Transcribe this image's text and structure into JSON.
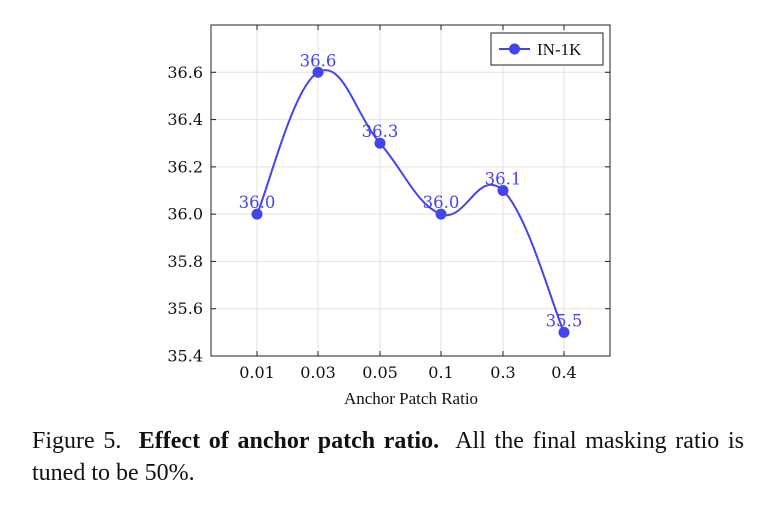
{
  "chart_data": {
    "type": "line",
    "categories": [
      "0.01",
      "0.03",
      "0.05",
      "0.1",
      "0.3",
      "0.4"
    ],
    "series": [
      {
        "name": "IN-1K",
        "values": [
          36.0,
          36.6,
          36.3,
          36.0,
          36.1,
          35.5
        ],
        "labels": [
          "36.0",
          "36.6",
          "36.3",
          "36.0",
          "36.1",
          "35.5"
        ]
      }
    ],
    "xlabel": "Anchor Patch Ratio",
    "ylabel": "",
    "ylim": [
      35.4,
      36.8
    ],
    "yticks": [
      "35.4",
      "35.6",
      "35.8",
      "36.0",
      "36.2",
      "36.4",
      "36.6"
    ],
    "grid": true,
    "legend": "top-right",
    "line_color": "#4444ee"
  },
  "caption": {
    "figure_label": "Figure 5.",
    "title": "Effect of anchor patch ratio.",
    "text": "All the final masking ratio is tuned to be 50%."
  }
}
